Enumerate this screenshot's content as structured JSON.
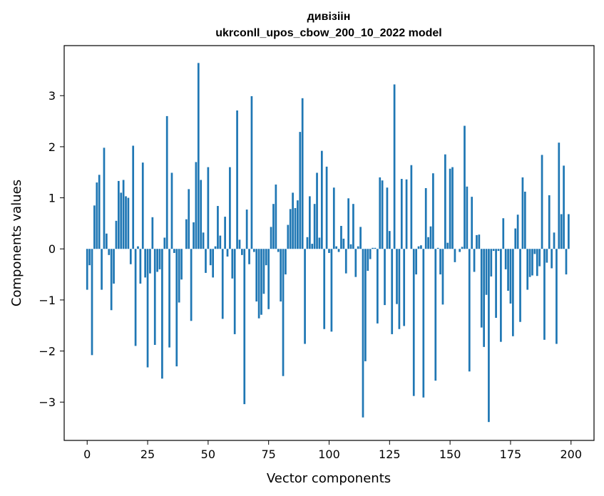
{
  "chart_data": {
    "type": "bar",
    "title": "дивізіін",
    "subtitle": "ukrconll_upos_cbow_200_10_2022 model",
    "xlabel": "Vector components",
    "ylabel": "Components values",
    "xlim": [
      -9.5,
      209.5
    ],
    "ylim": [
      -3.75,
      3.98
    ],
    "xticks": [
      0,
      25,
      50,
      75,
      100,
      125,
      150,
      175,
      200
    ],
    "xtick_labels": [
      "0",
      "25",
      "50",
      "75",
      "100",
      "125",
      "150",
      "175",
      "200"
    ],
    "yticks": [
      -3,
      -2,
      -1,
      0,
      1,
      2,
      3
    ],
    "ytick_labels": [
      "−3",
      "−2",
      "−1",
      "0",
      "1",
      "2",
      "3"
    ],
    "bar_color": "#1f77b4",
    "grid": false,
    "legend": "none",
    "x_start": 0,
    "values": [
      -0.8,
      -0.32,
      -2.08,
      0.85,
      1.3,
      1.45,
      -0.8,
      1.98,
      0.3,
      -0.12,
      -1.2,
      -0.68,
      0.55,
      1.33,
      1.1,
      1.35,
      1.03,
      1.0,
      -0.3,
      2.02,
      -1.9,
      0.05,
      -0.68,
      1.69,
      -0.56,
      -2.32,
      -0.48,
      0.62,
      -1.88,
      -0.45,
      -0.4,
      -2.54,
      0.22,
      2.6,
      -1.93,
      1.49,
      -0.08,
      -2.3,
      -1.05,
      -0.6,
      0.0,
      0.58,
      1.17,
      -1.41,
      0.52,
      1.7,
      3.64,
      1.35,
      0.32,
      -0.47,
      1.6,
      -0.32,
      -0.56,
      0.05,
      0.84,
      0.26,
      -1.37,
      0.63,
      -0.15,
      1.6,
      -0.58,
      -1.67,
      2.71,
      0.18,
      -0.12,
      -3.04,
      0.77,
      -0.3,
      2.99,
      -0.06,
      -1.03,
      -1.36,
      -1.29,
      -0.88,
      -0.32,
      -1.18,
      0.43,
      0.88,
      1.26,
      -0.06,
      -1.03,
      -2.49,
      -0.5,
      0.47,
      0.78,
      1.1,
      0.8,
      0.95,
      2.29,
      2.95,
      -1.86,
      0.23,
      1.03,
      0.1,
      0.88,
      1.49,
      0.22,
      1.92,
      -1.57,
      1.61,
      -0.08,
      -1.62,
      1.2,
      0.05,
      -0.06,
      0.45,
      0.2,
      -0.48,
      0.99,
      0.09,
      0.88,
      -0.55,
      0.05,
      0.43,
      -3.3,
      -2.2,
      -0.43,
      -0.2,
      0.02,
      0.02,
      -1.46,
      1.4,
      1.34,
      -1.1,
      1.2,
      0.35,
      -1.67,
      3.22,
      -1.08,
      -1.57,
      1.37,
      -1.51,
      1.36,
      0.0,
      1.64,
      -2.88,
      -0.5,
      0.05,
      0.07,
      -2.91,
      1.19,
      0.23,
      0.44,
      1.48,
      -2.58,
      0.02,
      -0.5,
      -1.09,
      1.85,
      0.12,
      1.57,
      1.6,
      -0.26,
      0.0,
      -0.06,
      0.04,
      2.41,
      1.22,
      -2.4,
      1.02,
      -0.45,
      0.27,
      0.28,
      -1.54,
      -1.92,
      -0.9,
      -3.39,
      -0.54,
      -0.04,
      -1.35,
      -0.04,
      -1.82,
      0.6,
      -0.4,
      -0.82,
      -1.07,
      -1.71,
      0.4,
      0.67,
      -1.43,
      1.4,
      1.12,
      -0.8,
      -0.55,
      -0.52,
      -0.1,
      -0.53,
      -0.34,
      1.84,
      -1.78,
      -0.27,
      1.05,
      -0.38,
      0.32,
      -1.86,
      2.08,
      0.68,
      1.63,
      -0.5,
      0.68
    ]
  }
}
